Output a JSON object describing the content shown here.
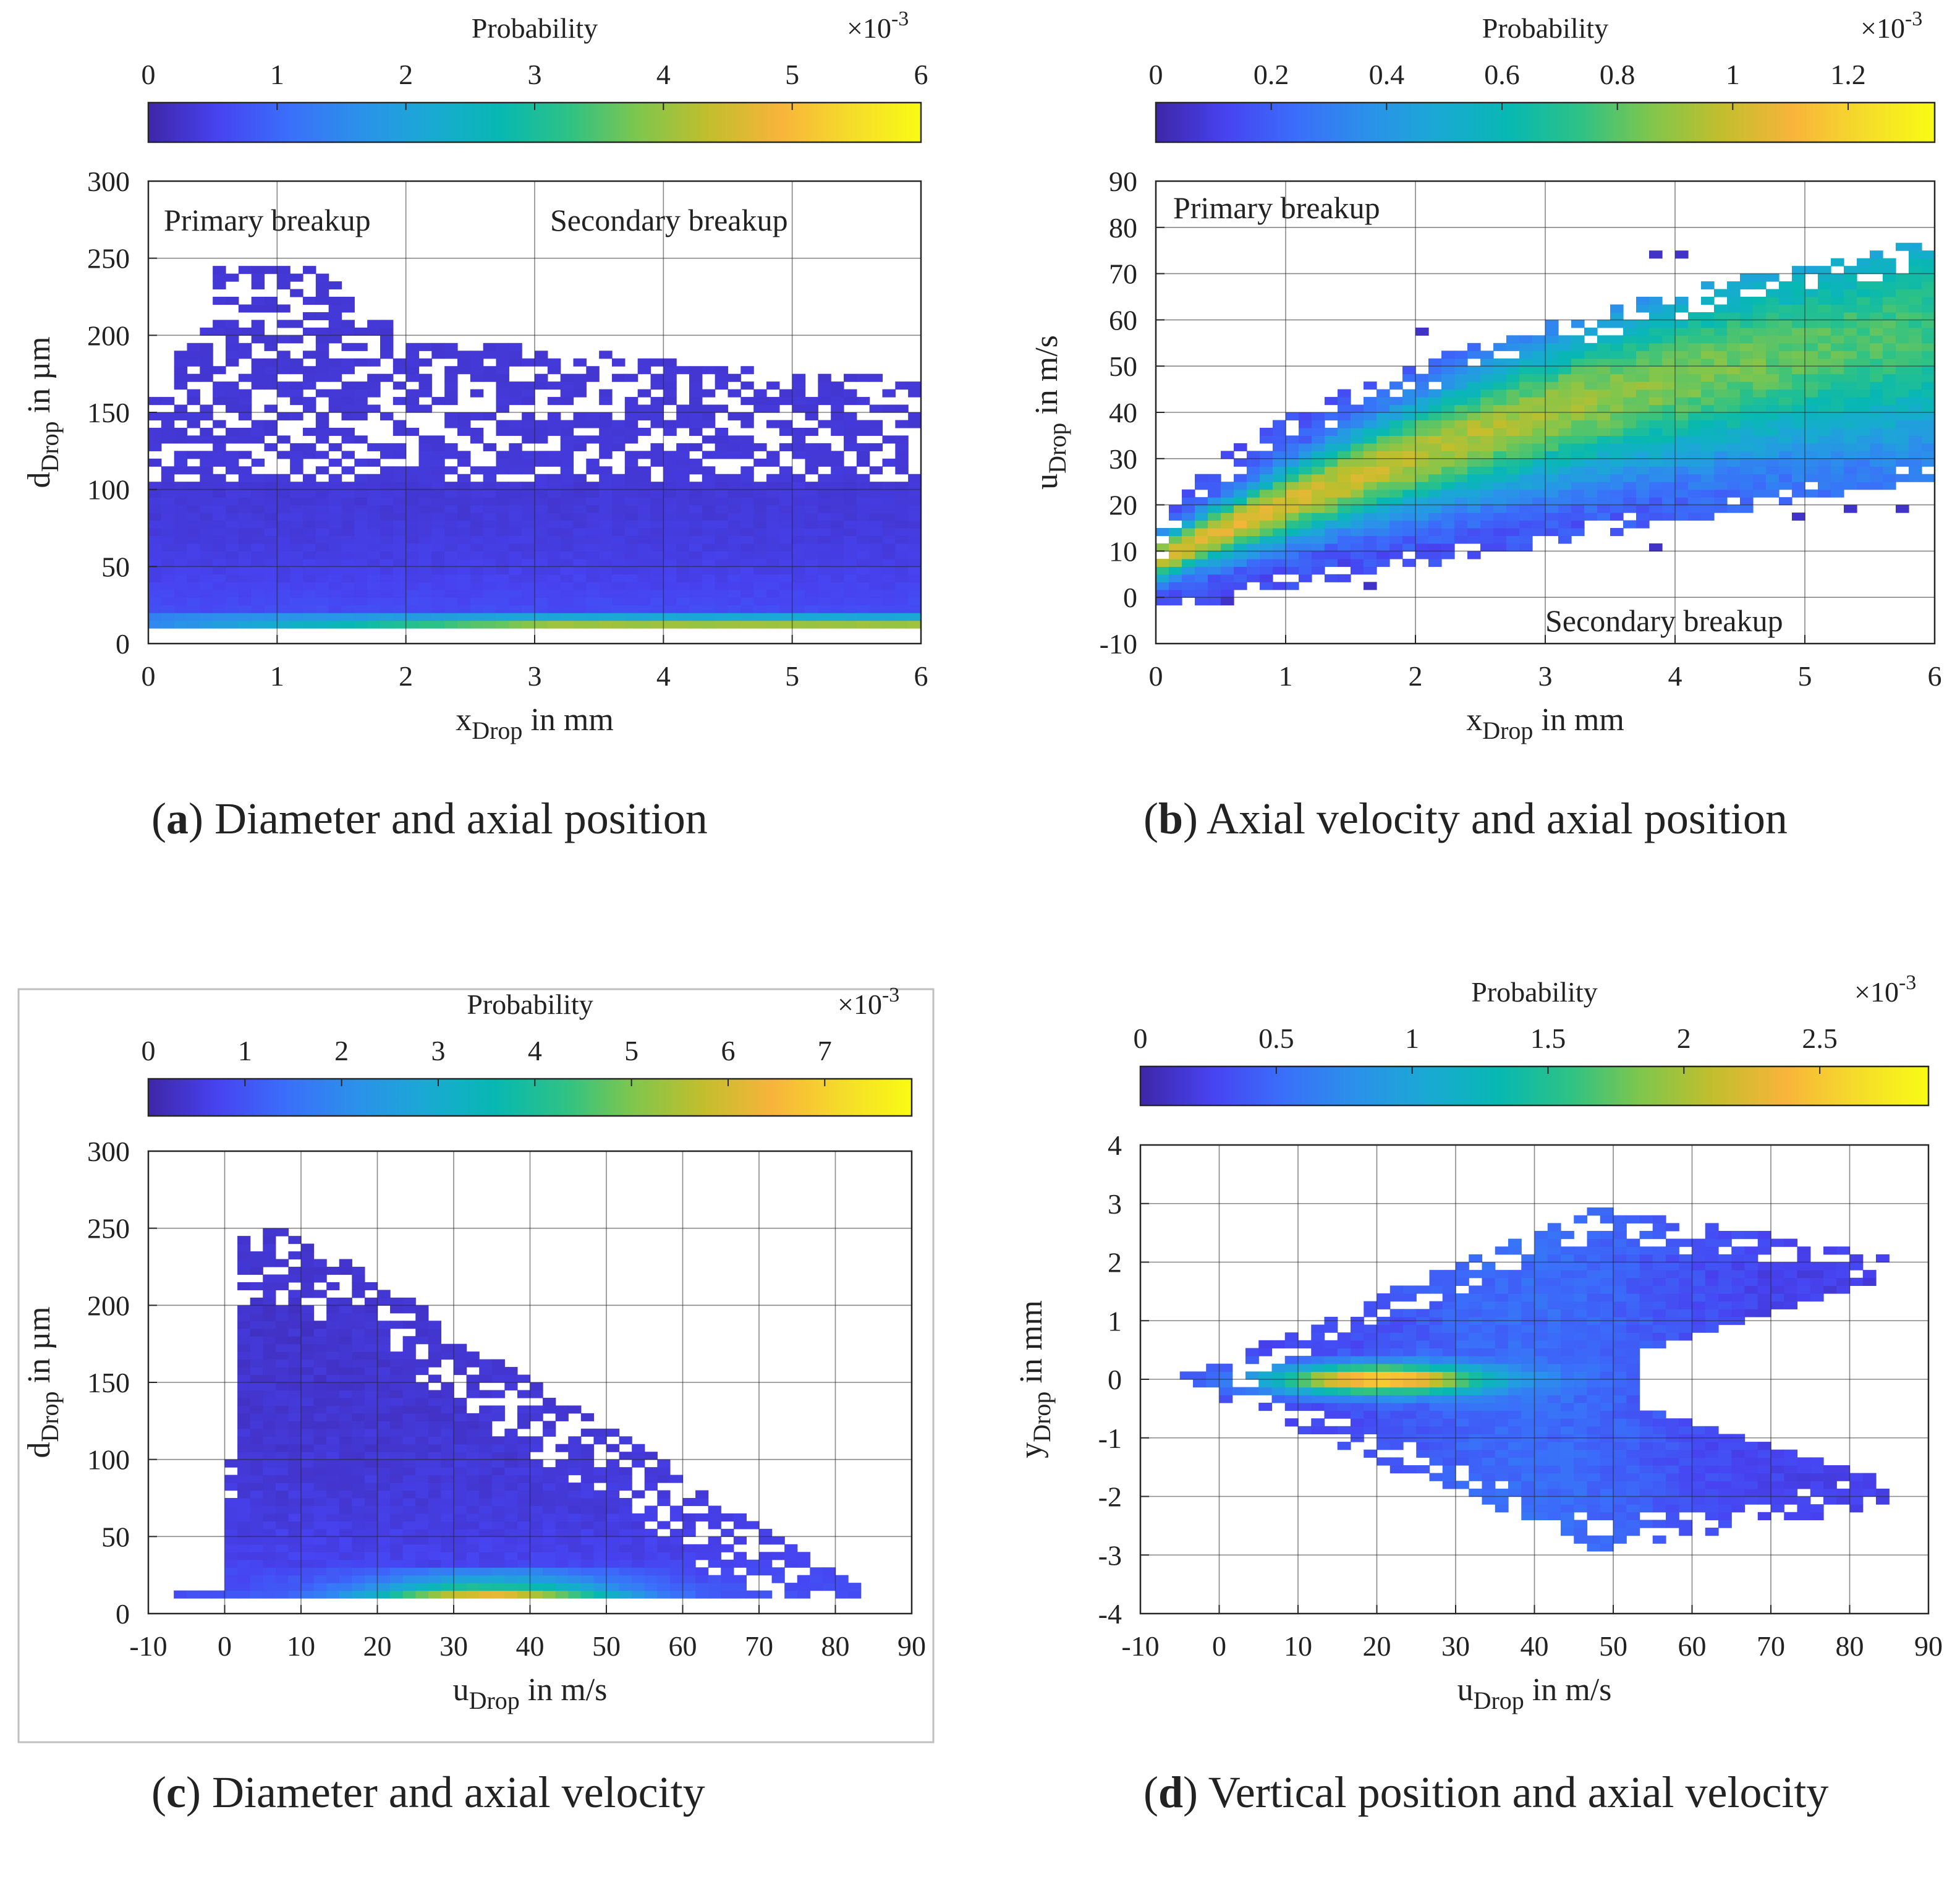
{
  "palette": [
    "#3e26a8",
    "#4743f1",
    "#3a6ffa",
    "#2b91ea",
    "#1aa9d4",
    "#07b8b2",
    "#2ec285",
    "#81c64c",
    "#c3be2c",
    "#f8b43b",
    "#f5dc2a",
    "#f9fb14"
  ],
  "colorbar_title": "Probability",
  "colorbar_exponent_base": "×10",
  "colorbar_exponent_power": "-3",
  "chart_data": [
    {
      "id": "a",
      "type": "heatmap",
      "caption_letter": "a",
      "caption_text": "Diameter and axial position",
      "xlabel_main": "x",
      "xlabel_sub": "Drop",
      "xlabel_unit": "in mm",
      "ylabel_main": "d",
      "ylabel_sub": "Drop",
      "ylabel_unit": "in µm",
      "xlim": [
        0,
        6
      ],
      "ylim": [
        0,
        300
      ],
      "xticks": [
        "0",
        "1",
        "2",
        "3",
        "4",
        "5",
        "6"
      ],
      "yticks": [
        "0",
        "50",
        "100",
        "150",
        "200",
        "250",
        "300"
      ],
      "colorbar_max": 6.0,
      "colorbar_ticks": [
        "0",
        "1",
        "2",
        "3",
        "4",
        "5",
        "6"
      ],
      "annotations": [
        "Primary breakup",
        "Secondary breakup"
      ],
      "density_model": "diameter-position"
    },
    {
      "id": "b",
      "type": "heatmap",
      "caption_letter": "b",
      "caption_text": "Axial velocity and axial position",
      "xlabel_main": "x",
      "xlabel_sub": "Drop",
      "xlabel_unit": "in mm",
      "ylabel_main": "u",
      "ylabel_sub": "Drop",
      "ylabel_unit": "in m/s",
      "xlim": [
        0,
        6
      ],
      "ylim": [
        -10,
        90
      ],
      "xticks": [
        "0",
        "1",
        "2",
        "3",
        "4",
        "5",
        "6"
      ],
      "yticks": [
        "-10",
        "0",
        "10",
        "20",
        "30",
        "40",
        "50",
        "60",
        "70",
        "80",
        "90"
      ],
      "colorbar_max": 1.35,
      "colorbar_ticks": [
        "0",
        "0.2",
        "0.4",
        "0.6",
        "0.8",
        "1",
        "1.2"
      ],
      "annotations": [
        "Primary breakup",
        "Secondary breakup"
      ],
      "density_model": "velocity-position"
    },
    {
      "id": "c",
      "type": "heatmap",
      "caption_letter": "c",
      "caption_text": "Diameter and axial velocity",
      "xlabel_main": "u",
      "xlabel_sub": "Drop",
      "xlabel_unit": "in m/s",
      "ylabel_main": "d",
      "ylabel_sub": "Drop",
      "ylabel_unit": "in µm",
      "xlim": [
        -10,
        90
      ],
      "ylim": [
        0,
        300
      ],
      "xticks": [
        "-10",
        "0",
        "10",
        "20",
        "30",
        "40",
        "50",
        "60",
        "70",
        "80",
        "90"
      ],
      "yticks": [
        "0",
        "50",
        "100",
        "150",
        "200",
        "250",
        "300"
      ],
      "colorbar_max": 7.9,
      "colorbar_ticks": [
        "0",
        "1",
        "2",
        "3",
        "4",
        "5",
        "6",
        "7"
      ],
      "annotations": [],
      "density_model": "diameter-velocity"
    },
    {
      "id": "d",
      "type": "heatmap",
      "caption_letter": "d",
      "caption_text": "Vertical position and axial velocity",
      "xlabel_main": "u",
      "xlabel_sub": "Drop",
      "xlabel_unit": "in m/s",
      "ylabel_main": "y",
      "ylabel_sub": "Drop",
      "ylabel_unit": "in mm",
      "xlim": [
        -10,
        90
      ],
      "ylim": [
        -4,
        4
      ],
      "xticks": [
        "-10",
        "0",
        "10",
        "20",
        "30",
        "40",
        "50",
        "60",
        "70",
        "80",
        "90"
      ],
      "yticks": [
        "-4",
        "-3",
        "-2",
        "-1",
        "0",
        "1",
        "2",
        "3",
        "4"
      ],
      "colorbar_max": 2.9,
      "colorbar_ticks": [
        "0",
        "0.5",
        "1",
        "1.5",
        "2",
        "2.5"
      ],
      "annotations": [],
      "density_model": "vertical-velocity"
    }
  ]
}
